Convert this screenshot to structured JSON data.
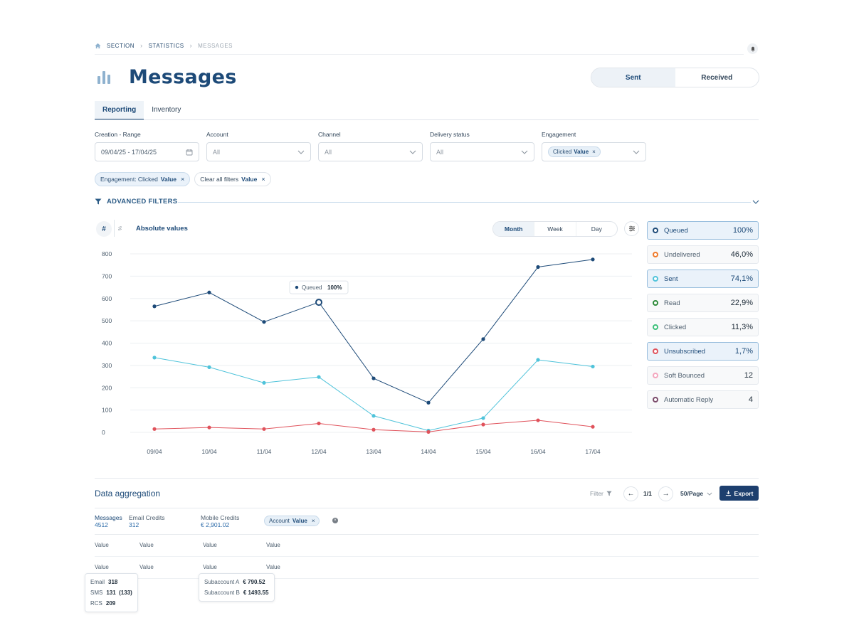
{
  "breadcrumb": [
    "SECTION",
    "STATISTICS",
    "MESSAGES"
  ],
  "page": {
    "title": "Messages"
  },
  "toggle": {
    "sent": "Sent",
    "received": "Received"
  },
  "tabs": {
    "reporting": "Reporting",
    "inventory": "Inventory"
  },
  "filters": {
    "range": {
      "label": "Creation - Range",
      "value": "09/04/25 - 17/04/25"
    },
    "account": {
      "label": "Account",
      "value": "All"
    },
    "channel": {
      "label": "Channel",
      "value": "All"
    },
    "delivery": {
      "label": "Delivery status",
      "value": "All"
    },
    "engagement": {
      "label": "Engagement",
      "chip_text": "Clicked",
      "chip_value": "Value"
    }
  },
  "active_chips": [
    {
      "text": "Engagement: Clicked",
      "value": "Value"
    },
    {
      "text": "Clear all filters",
      "value": "Value"
    }
  ],
  "advanced_filters": "ADVANCED FILTERS",
  "chart_header": {
    "hash": "#",
    "pct": "%",
    "label": "Absolute values",
    "periods": [
      "Month",
      "Week",
      "Day"
    ]
  },
  "chart_data": {
    "type": "line",
    "x": [
      "09/04",
      "10/04",
      "11/04",
      "12/04",
      "13/04",
      "14/04",
      "15/04",
      "16/04",
      "17/04"
    ],
    "ylim": [
      0,
      800
    ],
    "yticks": [
      0,
      100,
      200,
      300,
      400,
      500,
      600,
      700,
      800
    ],
    "series": [
      {
        "name": "Queued",
        "color": "#1d4a78",
        "values": [
          565,
          627,
          495,
          583,
          242,
          133,
          418,
          741,
          775
        ]
      },
      {
        "name": "Sent",
        "color": "#4fc3da",
        "values": [
          335,
          292,
          222,
          248,
          74,
          8,
          64,
          325,
          295
        ]
      },
      {
        "name": "Unsubscribed",
        "color": "#e0525b",
        "values": [
          15,
          22,
          15,
          40,
          12,
          2,
          35,
          54,
          25
        ]
      }
    ],
    "tooltip": {
      "name": "Queued",
      "value": "100%",
      "index": 3
    }
  },
  "legend": [
    {
      "name": "Queued",
      "value": "100%",
      "color": "#1d4a78",
      "selected": true
    },
    {
      "name": "Undelivered",
      "value": "46,0%",
      "color": "#f07a2a",
      "selected": false
    },
    {
      "name": "Sent",
      "value": "74,1%",
      "color": "#4fc3da",
      "selected": true
    },
    {
      "name": "Read",
      "value": "22,9%",
      "color": "#2e8b3a",
      "selected": false
    },
    {
      "name": "Clicked",
      "value": "11,3%",
      "color": "#3cc07a",
      "selected": false
    },
    {
      "name": "Unsubscribed",
      "value": "1,7%",
      "color": "#e0525b",
      "selected": true
    },
    {
      "name": "Soft Bounced",
      "value": "12",
      "color": "#f4a6be",
      "selected": false
    },
    {
      "name": "Automatic Reply",
      "value": "4",
      "color": "#7a4a6a",
      "selected": false
    }
  ],
  "aggregation": {
    "title": "Data aggregation",
    "filter": "Filter",
    "page": "1/1",
    "per_page": "50/Page",
    "export": "Export",
    "stats": {
      "messages": {
        "label": "Messages",
        "value": "4512"
      },
      "email": {
        "label": "Email Credits",
        "value": "312"
      },
      "mobile": {
        "label": "Mobile Credits",
        "value": "€ 2,901.02"
      }
    },
    "account_chip": {
      "text": "Account",
      "value": "Value"
    },
    "rows": [
      [
        "Value",
        "Value",
        "Value",
        "Value"
      ],
      [
        "Value",
        "Value",
        "Value",
        "Value"
      ]
    ],
    "tip_channels": [
      {
        "k": "Email",
        "v": "318"
      },
      {
        "k": "SMS",
        "v": "131  (133)"
      },
      {
        "k": "RCS",
        "v": "209"
      }
    ],
    "tip_subaccounts": [
      {
        "k": "Subaccount A",
        "v": "€ 790.52"
      },
      {
        "k": "Subaccount B",
        "v": "€ 1493.55"
      }
    ]
  }
}
